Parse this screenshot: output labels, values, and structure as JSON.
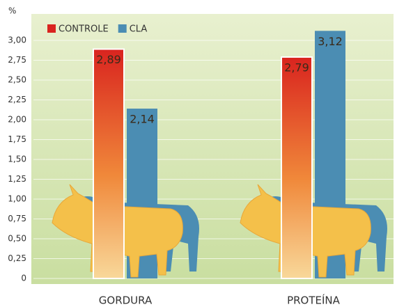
{
  "chart_data": {
    "type": "bar",
    "y_label": "%",
    "categories": [
      "GORDURA",
      "PROTEÍNA"
    ],
    "series": [
      {
        "name": "CONTROLE",
        "color": "#d9241f",
        "values": [
          2.89,
          2.79
        ],
        "value_labels": [
          "2,89",
          "2,79"
        ]
      },
      {
        "name": "CLA",
        "color": "#4b8db3",
        "values": [
          2.14,
          3.12
        ],
        "value_labels": [
          "2,14",
          "3,12"
        ]
      }
    ],
    "ylim": [
      0,
      3.25
    ],
    "yticks": [
      0,
      {
        "value": 0.25,
        "label": "0,25"
      },
      {
        "value": 0.5,
        "label": "0,50"
      },
      {
        "value": 0.75,
        "label": "0,75"
      },
      {
        "value": 1,
        "label": "1,00"
      },
      {
        "value": 1.25,
        "label": "1,25"
      },
      {
        "value": 1.5,
        "label": "1,50"
      },
      {
        "value": 1.75,
        "label": "1,75"
      },
      {
        "value": 2,
        "label": "2,00"
      },
      {
        "value": 2.25,
        "label": "2,25"
      },
      {
        "value": 2.5,
        "label": "2,50"
      },
      {
        "value": 2.75,
        "label": "2,75"
      },
      {
        "value": 3,
        "label": "3,00"
      }
    ],
    "grid": true
  }
}
